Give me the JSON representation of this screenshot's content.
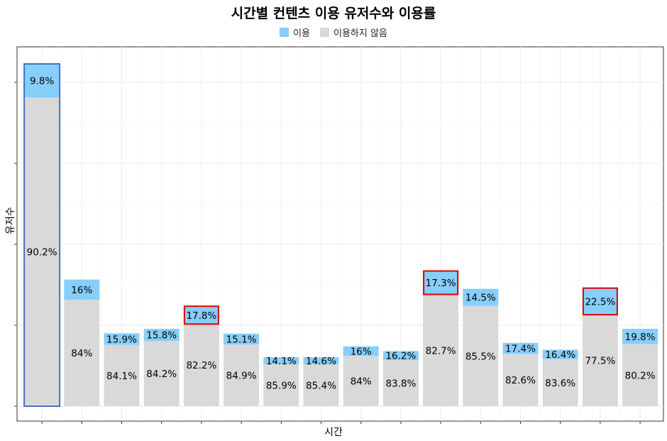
{
  "chart_data": {
    "type": "bar",
    "stacked": true,
    "title": "시간별 컨텐츠 이용 유저수와 이용률",
    "xlabel": "시간",
    "ylabel": "유저수",
    "grid": true,
    "legend_position": "top",
    "series": [
      {
        "name": "이용",
        "color": "#87CEFA",
        "labels": [
          "9.8%",
          "16%",
          "15.9%",
          "15.8%",
          "17.8%",
          "15.1%",
          "14.1%",
          "14.6%",
          "16%",
          "16.2%",
          "17.3%",
          "14.5%",
          "17.4%",
          "16.4%",
          "22.5%",
          "19.8%"
        ],
        "values": [
          0.098,
          0.16,
          0.159,
          0.158,
          0.178,
          0.151,
          0.141,
          0.146,
          0.16,
          0.162,
          0.173,
          0.145,
          0.174,
          0.164,
          0.225,
          0.198
        ]
      },
      {
        "name": "이용하지 않음",
        "color": "#D9D9D9",
        "labels": [
          "90.2%",
          "84%",
          "84.1%",
          "84.2%",
          "82.2%",
          "84.9%",
          "85.9%",
          "85.4%",
          "84%",
          "83.8%",
          "82.7%",
          "85.5%",
          "82.6%",
          "83.6%",
          "77.5%",
          "80.2%"
        ],
        "values": [
          0.902,
          0.84,
          0.841,
          0.842,
          0.822,
          0.849,
          0.859,
          0.854,
          0.84,
          0.838,
          0.827,
          0.855,
          0.826,
          0.836,
          0.775,
          0.802
        ]
      }
    ],
    "bar_totals_relative": [
      1.0,
      0.37,
      0.213,
      0.226,
      0.292,
      0.212,
      0.143,
      0.143,
      0.175,
      0.161,
      0.395,
      0.343,
      0.185,
      0.165,
      0.345,
      0.226
    ],
    "highlight_bar_total": [
      0
    ],
    "highlight_usage_segment": [
      4,
      10,
      14
    ],
    "highlight_colors": {
      "total": "#4472C4",
      "usage": "#E00000"
    }
  }
}
